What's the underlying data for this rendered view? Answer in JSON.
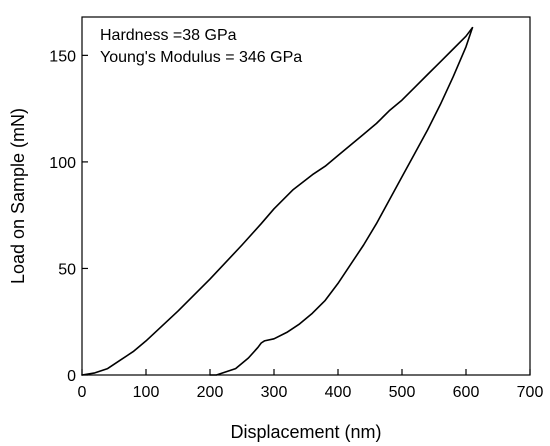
{
  "chart_data": {
    "type": "line",
    "xlabel": "Displacement (nm)",
    "ylabel": "Load on Sample (mN)",
    "xlim": [
      0,
      700
    ],
    "ylim": [
      0,
      168
    ],
    "xticks": [
      0,
      100,
      200,
      300,
      400,
      500,
      600,
      700
    ],
    "yticks": [
      0,
      50,
      100,
      150
    ],
    "grid": false,
    "annotations": [
      "Hardness =38 GPa",
      "Young's Modulus = 346 GPa"
    ],
    "series": [
      {
        "role": "loading",
        "color": "#000000",
        "x": [
          0,
          20,
          40,
          60,
          80,
          100,
          150,
          200,
          250,
          280,
          300,
          330,
          360,
          380,
          400,
          420,
          440,
          460,
          480,
          500,
          520,
          540,
          560,
          580,
          600,
          610
        ],
        "y": [
          0,
          1,
          3,
          7,
          11,
          16,
          30,
          45,
          61,
          71,
          78,
          87,
          94,
          98,
          103,
          108,
          113,
          118,
          124,
          129,
          135,
          141,
          147,
          153,
          159,
          163
        ]
      },
      {
        "role": "unloading",
        "color": "#000000",
        "x": [
          610,
          600,
          580,
          560,
          540,
          520,
          500,
          480,
          460,
          440,
          420,
          400,
          380,
          360,
          340,
          320,
          300,
          285,
          280,
          275,
          260,
          240,
          220,
          210,
          200
        ],
        "y": [
          163,
          154,
          140,
          127,
          115,
          104,
          93,
          82,
          71,
          61,
          52,
          43,
          35,
          29,
          24,
          20,
          17,
          16,
          15,
          13,
          8,
          3,
          1,
          0,
          0
        ]
      }
    ]
  }
}
